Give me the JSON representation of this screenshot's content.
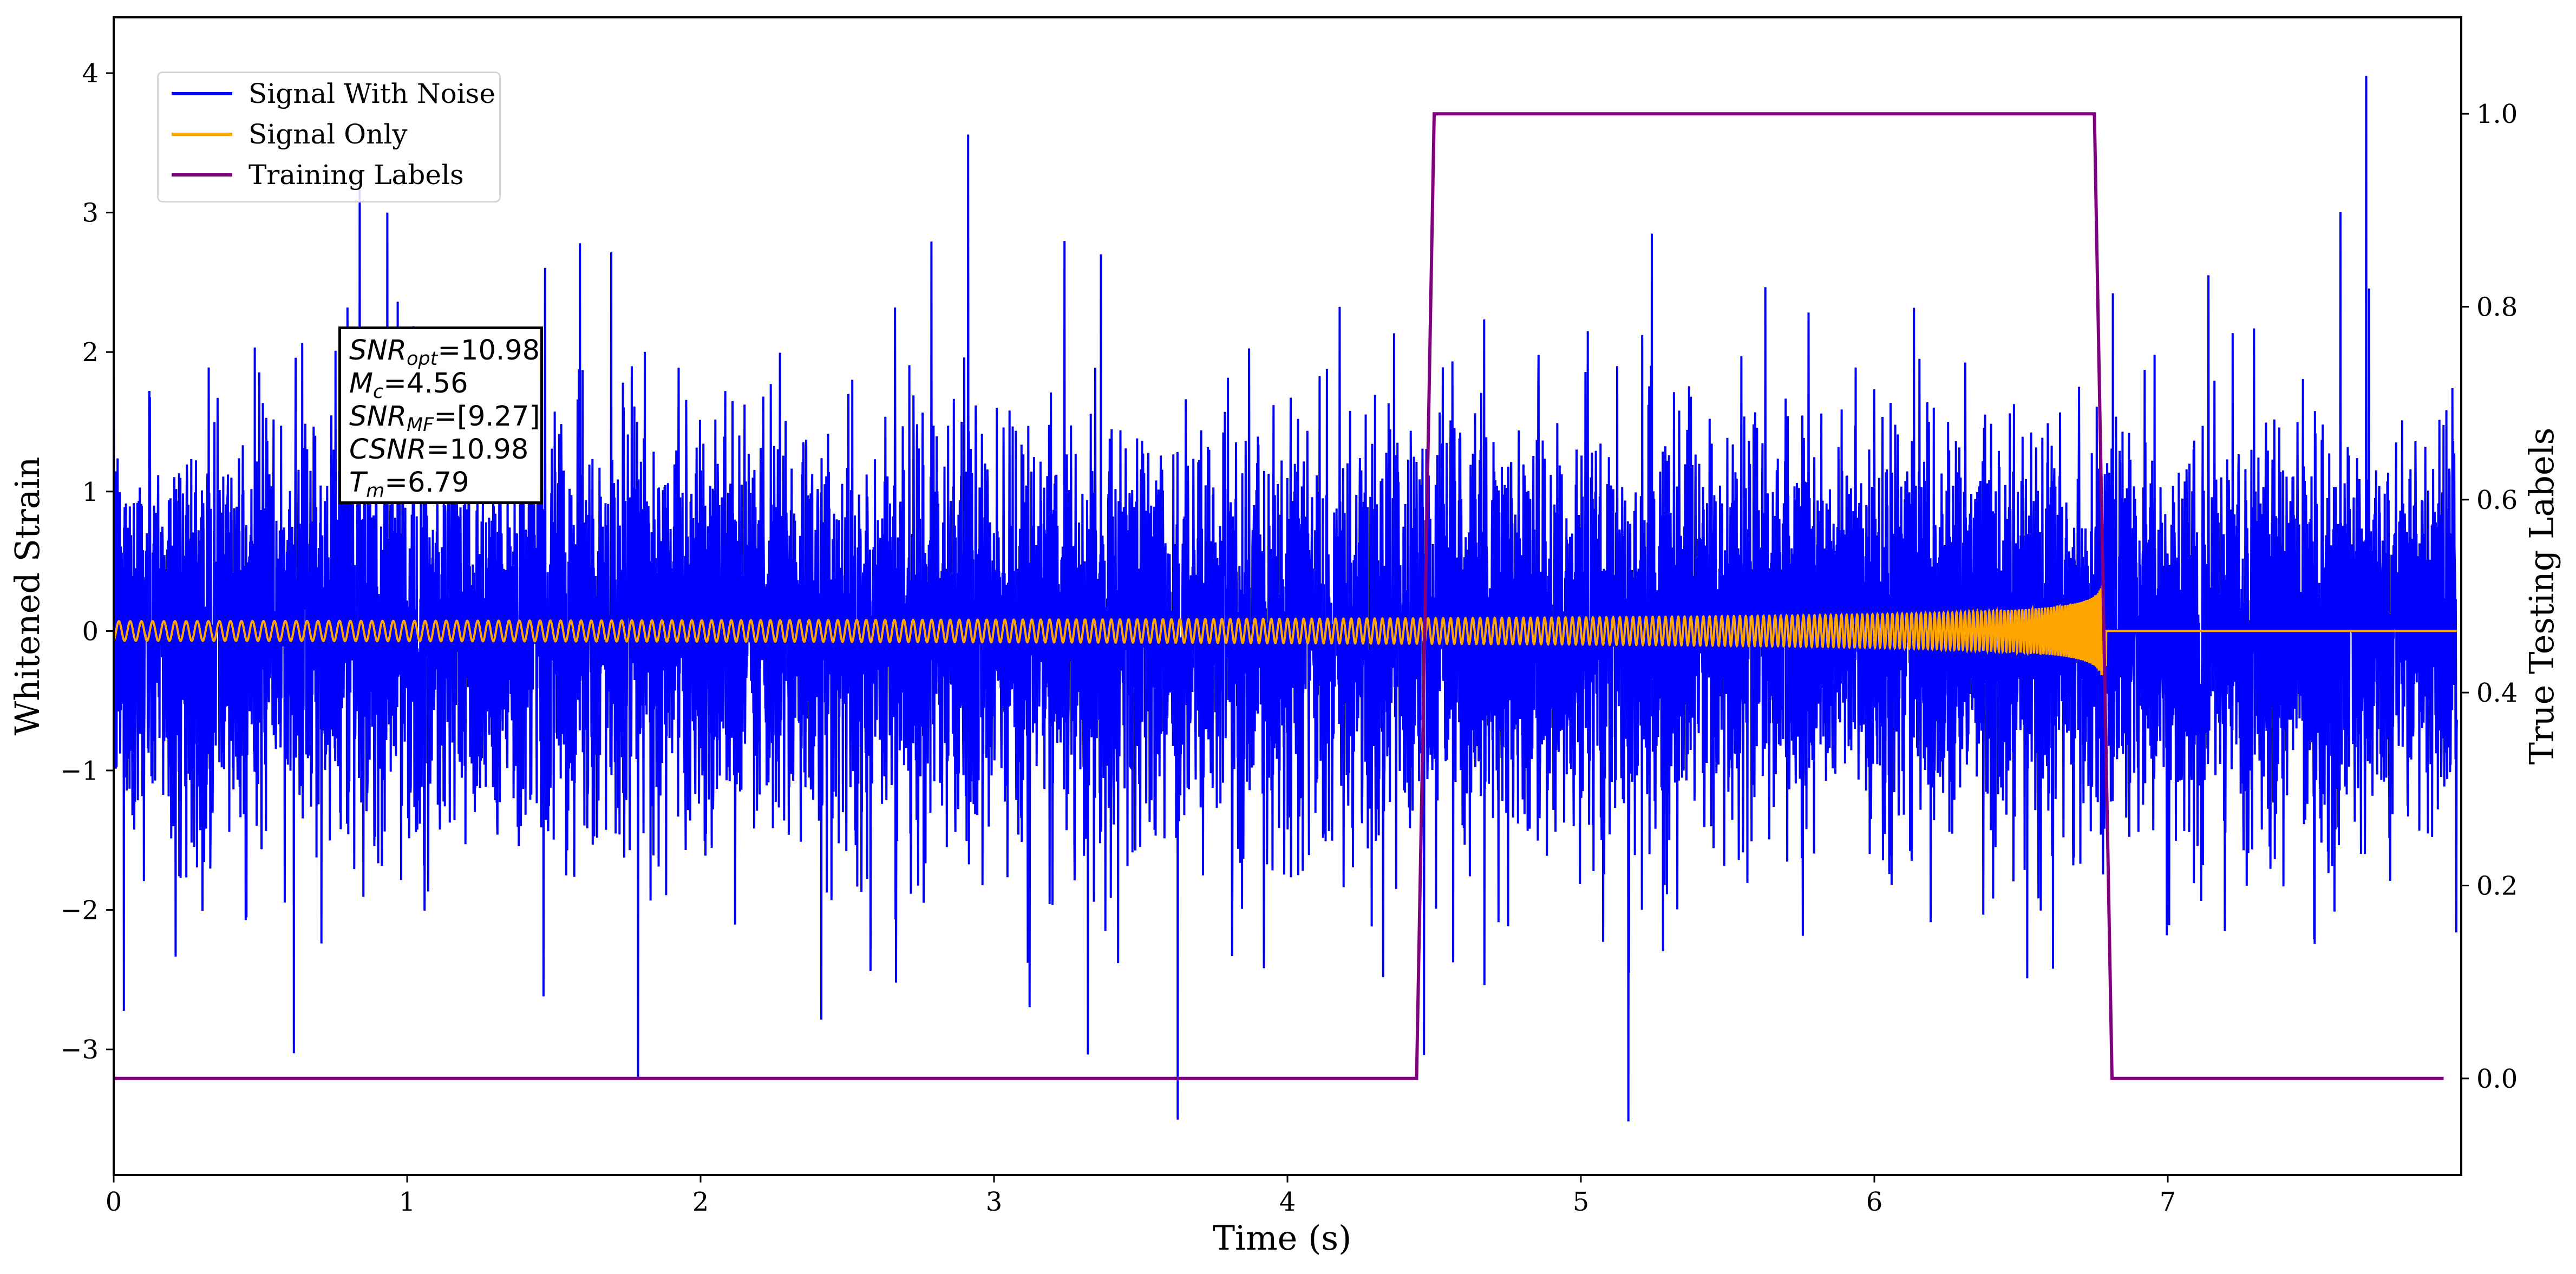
{
  "chart_data": {
    "type": "line",
    "xlabel": "Time (s)",
    "ylabel": "Whitened Strain",
    "ylabel_right": "True Testing Labels",
    "xlim": [
      0,
      8
    ],
    "ylim": [
      -3.9,
      4.4
    ],
    "ylim_right": [
      -0.1,
      1.1
    ],
    "x_ticks": [
      0,
      1,
      2,
      3,
      4,
      5,
      6,
      7
    ],
    "x_tick_labels": [
      "0",
      "1",
      "2",
      "3",
      "4",
      "5",
      "6",
      "7"
    ],
    "y_ticks": [
      -3,
      -2,
      -1,
      0,
      1,
      2,
      3,
      4
    ],
    "y_tick_labels": [
      "−3",
      "−2",
      "−1",
      "0",
      "1",
      "2",
      "3",
      "4"
    ],
    "y_right_ticks": [
      0.0,
      0.2,
      0.4,
      0.6,
      0.8,
      1.0
    ],
    "y_right_tick_labels": [
      "0.0",
      "0.2",
      "0.4",
      "0.6",
      "0.8",
      "1.0"
    ],
    "grid": false,
    "legend_position": "upper-left",
    "series": [
      {
        "name": "Signal With Noise",
        "color": "#0000ff",
        "axis": "left",
        "noise_std": 0.7,
        "typical_extrema": [
          -3.5,
          4.0
        ]
      },
      {
        "name": "Signal Only",
        "color": "#ffa500",
        "axis": "left",
        "chirp_amplitude_start": 0.07,
        "chirp_amplitude_peak": 0.85,
        "merger_time": 6.79,
        "post_merger_value": 0.0
      },
      {
        "name": "Training Labels",
        "color": "#800080",
        "axis": "right",
        "x": [
          0,
          4.44,
          4.5,
          6.75,
          6.81,
          7.94
        ],
        "y": [
          0,
          0,
          1,
          1,
          0,
          0
        ]
      }
    ],
    "annotation": {
      "snr_opt_label": "SNR",
      "snr_opt_sub": "opt",
      "snr_opt_value": "=10.98",
      "mc_label": "M",
      "mc_sub": "c",
      "mc_value": "=4.56",
      "snr_mf_label": "SNR",
      "snr_mf_sub": "MF",
      "snr_mf_value": "=[9.27]",
      "csnr_label": "CSNR",
      "csnr_value": "=10.98",
      "tm_label": "T",
      "tm_sub": "m",
      "tm_value": "=6.79"
    }
  }
}
